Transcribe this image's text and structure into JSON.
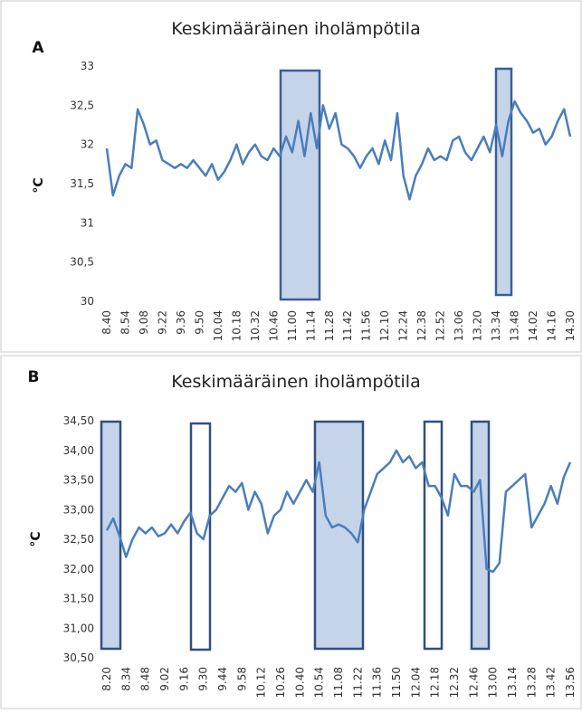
{
  "chart_data": [
    {
      "type": "line",
      "panel_label": "A",
      "title": "Keskimääräinen iholämpötila",
      "y_label": "°C",
      "categories": [
        "8.40",
        null,
        null,
        "8.54",
        null,
        null,
        "9.08",
        null,
        null,
        "9.22",
        null,
        null,
        "9.36",
        null,
        null,
        "9.50",
        null,
        null,
        "10.04",
        null,
        null,
        "10.18",
        null,
        null,
        "10.32",
        null,
        null,
        "10.46",
        null,
        null,
        "11.00",
        null,
        null,
        "11.14",
        null,
        null,
        "11.28",
        null,
        null,
        "11.42",
        null,
        null,
        "11.56",
        null,
        null,
        "12.10",
        null,
        null,
        "12.24",
        null,
        null,
        "12.38",
        null,
        null,
        "12.52",
        null,
        null,
        "13.06",
        null,
        null,
        "13.20",
        null,
        null,
        "13.34",
        null,
        null,
        "13.48",
        null,
        null,
        "14.02",
        null,
        null,
        "14.16",
        null,
        null,
        "14.30"
      ],
      "series": [
        {
          "color": "#4a7ebb",
          "values": [
            31.95,
            31.35,
            31.6,
            31.75,
            31.7,
            32.45,
            32.25,
            32.0,
            32.05,
            31.8,
            31.75,
            31.7,
            31.75,
            31.7,
            31.8,
            31.7,
            31.6,
            31.75,
            31.55,
            31.65,
            31.8,
            32.0,
            31.75,
            31.9,
            32.0,
            31.85,
            31.8,
            31.95,
            31.85,
            32.1,
            31.9,
            32.3,
            31.85,
            32.4,
            31.95,
            32.5,
            32.2,
            32.4,
            32.0,
            31.95,
            31.85,
            31.7,
            31.85,
            31.95,
            31.75,
            32.05,
            31.8,
            32.4,
            31.6,
            31.3,
            31.6,
            31.75,
            31.95,
            31.8,
            31.85,
            31.8,
            32.05,
            32.1,
            31.9,
            31.8,
            31.95,
            32.1,
            31.9,
            32.25,
            31.85,
            32.3,
            32.55,
            32.4,
            32.3,
            32.15,
            32.2,
            32.0,
            32.1,
            32.3,
            32.45,
            32.1
          ]
        }
      ],
      "ylim": [
        30,
        33
      ],
      "yticks": [
        30,
        {
          "value": 30.5,
          "label": "30,5"
        },
        31,
        {
          "value": 31.5,
          "label": "31,5"
        },
        32,
        {
          "value": 32.5,
          "label": "32,5"
        },
        33
      ]
    },
    {
      "type": "line",
      "panel_label": "B",
      "title": "Keskimääräinen iholämpötila",
      "y_label": "°C",
      "categories": [
        "8.20",
        null,
        null,
        "8.34",
        null,
        null,
        "8.48",
        null,
        null,
        "9.02",
        null,
        null,
        "9.16",
        null,
        null,
        "9.30",
        null,
        null,
        "9.44",
        null,
        null,
        "9.58",
        null,
        null,
        "10.12",
        null,
        null,
        "10.26",
        null,
        null,
        "10.40",
        null,
        null,
        "10.54",
        null,
        null,
        "11.08",
        null,
        null,
        "11.22",
        null,
        null,
        "11.36",
        null,
        null,
        "11.50",
        null,
        null,
        "12.04",
        null,
        null,
        "12.18",
        null,
        null,
        "12.32",
        null,
        null,
        "12.46",
        null,
        null,
        "13.00",
        null,
        null,
        "13.14",
        null,
        null,
        "13.28",
        null,
        null,
        "13.42",
        null,
        null,
        "13.56"
      ],
      "series": [
        {
          "color": "#4a7ebb",
          "values": [
            32.65,
            32.85,
            32.55,
            32.2,
            32.5,
            32.7,
            32.6,
            32.7,
            32.55,
            32.6,
            32.75,
            32.6,
            32.8,
            32.95,
            32.6,
            32.5,
            32.9,
            33.0,
            33.2,
            33.4,
            33.3,
            33.45,
            33.0,
            33.3,
            33.1,
            32.6,
            32.9,
            33.0,
            33.3,
            33.1,
            33.3,
            33.5,
            33.3,
            33.8,
            32.9,
            32.7,
            32.75,
            32.7,
            32.6,
            32.45,
            33.0,
            33.3,
            33.6,
            33.7,
            33.8,
            34.0,
            33.8,
            33.9,
            33.7,
            33.8,
            33.4,
            33.4,
            33.2,
            32.9,
            33.6,
            33.4,
            33.4,
            33.3,
            33.5,
            32.0,
            31.95,
            32.1,
            33.3,
            33.4,
            33.5,
            33.6,
            32.7,
            32.9,
            33.1,
            33.4,
            33.1,
            33.55,
            33.8
          ]
        }
      ],
      "ylim": [
        30.5,
        34.5
      ],
      "yticks": [
        {
          "value": 30.5,
          "label": "30,50"
        },
        {
          "value": 31,
          "label": "31,00"
        },
        {
          "value": 31.5,
          "label": "31,50"
        },
        {
          "value": 32,
          "label": "32,00"
        },
        {
          "value": 32.5,
          "label": "32,50"
        },
        {
          "value": 33,
          "label": "33,00"
        },
        {
          "value": 33.5,
          "label": "33,50"
        },
        {
          "value": 34,
          "label": "34,00"
        },
        {
          "value": 34.5,
          "label": "34,50"
        }
      ]
    }
  ]
}
